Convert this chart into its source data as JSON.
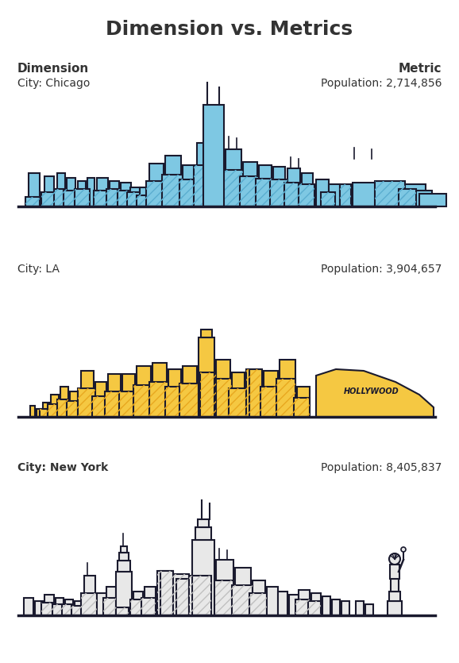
{
  "title": "Dimension vs. Metrics",
  "title_fontsize": 18,
  "label_left": "Dimension",
  "label_right": "Metric",
  "cities": [
    {
      "name": "City: Chicago",
      "population": "Population: 2,714,856",
      "color_fill": "#7EC8E3",
      "color_hatch": "#5BAED0",
      "color_outline": "#1A1A2E",
      "skyline_type": "chicago"
    },
    {
      "name": "City: LA",
      "population": "Population: 3,904,657",
      "color_fill": "#F5C842",
      "color_hatch": "#E8A820",
      "color_outline": "#1A1A2E",
      "skyline_type": "la"
    },
    {
      "name": "City: New York",
      "population": "Population: 8,405,837",
      "color_fill": "#E8E8E8",
      "color_hatch": "#C0C0C0",
      "color_outline": "#1A1A2E",
      "skyline_type": "newyork"
    }
  ],
  "background_color": "#FFFFFF",
  "text_color": "#333333"
}
